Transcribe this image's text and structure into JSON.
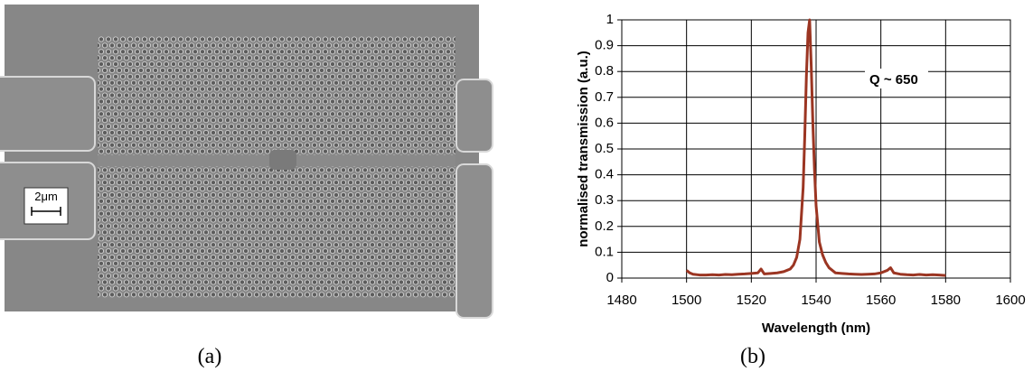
{
  "panel_labels": [
    "(a)",
    "(b)"
  ],
  "scale_bar": "2μm",
  "chart_data": {
    "type": "line",
    "x_label": "Wavelength (nm)",
    "y_label": "normalised transmission (a.u.)",
    "annotation": "Q ~ 650",
    "xlim": [
      1480,
      1600
    ],
    "xticks": [
      1480,
      1500,
      1520,
      1540,
      1560,
      1580,
      1600
    ],
    "ylim": [
      0,
      1
    ],
    "yticks": [
      0,
      0.1,
      0.2,
      0.3,
      0.4,
      0.5,
      0.6,
      0.7,
      0.8,
      0.9,
      1
    ],
    "grid": true,
    "series": [
      {
        "color": "#9b3522",
        "x": [
          1500,
          1501,
          1502,
          1504,
          1506,
          1508,
          1510,
          1512,
          1514,
          1516,
          1518,
          1520,
          1522,
          1523,
          1524,
          1526,
          1528,
          1530,
          1531,
          1532,
          1533,
          1534,
          1535,
          1536,
          1536.5,
          1537,
          1537.5,
          1538,
          1538.5,
          1539,
          1539.5,
          1540,
          1541,
          1542,
          1543,
          1544,
          1545,
          1546,
          1548,
          1550,
          1552,
          1554,
          1556,
          1558,
          1560,
          1562,
          1563,
          1564,
          1566,
          1568,
          1570,
          1572,
          1574,
          1576,
          1578,
          1580
        ],
        "values": [
          0.03,
          0.02,
          0.015,
          0.012,
          0.012,
          0.013,
          0.012,
          0.014,
          0.013,
          0.015,
          0.016,
          0.018,
          0.02,
          0.035,
          0.016,
          0.018,
          0.02,
          0.025,
          0.03,
          0.035,
          0.05,
          0.08,
          0.15,
          0.35,
          0.55,
          0.78,
          0.95,
          1.0,
          0.82,
          0.6,
          0.42,
          0.28,
          0.14,
          0.09,
          0.06,
          0.04,
          0.03,
          0.02,
          0.018,
          0.016,
          0.015,
          0.014,
          0.015,
          0.016,
          0.02,
          0.03,
          0.04,
          0.02,
          0.015,
          0.013,
          0.012,
          0.014,
          0.012,
          0.013,
          0.012,
          0.01
        ]
      }
    ]
  }
}
